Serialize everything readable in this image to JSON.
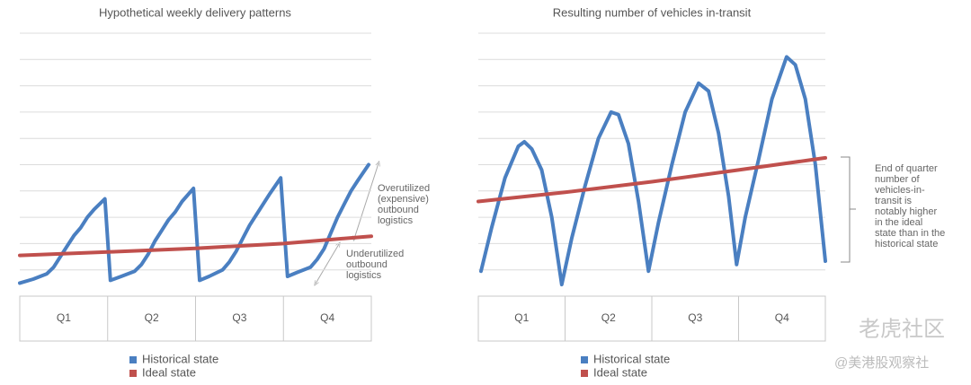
{
  "chart_data": [
    {
      "type": "line",
      "title": "Hypothetical weekly delivery patterns",
      "categories": [
        "Q1",
        "Q2",
        "Q3",
        "Q4"
      ],
      "xlim": [
        0,
        52
      ],
      "ylim": [
        0,
        10
      ],
      "yticks": [
        0,
        1,
        2,
        3,
        4,
        5,
        6,
        7,
        8,
        9,
        10
      ],
      "grid": true,
      "series": [
        {
          "name": "Historical state",
          "color": "#4a7fc1",
          "x": [
            0,
            2,
            4,
            5,
            6,
            7,
            8,
            9,
            10,
            11,
            12.6,
            13.4,
            15,
            17,
            18,
            19,
            20,
            21,
            22,
            23,
            24,
            25.7,
            26.6,
            28,
            30,
            31,
            32,
            33,
            34,
            35,
            36,
            37,
            38.6,
            39.6,
            41,
            43,
            44,
            45,
            46,
            47,
            48,
            49,
            50,
            51.6
          ],
          "values": [
            0.5,
            0.65,
            0.85,
            1.1,
            1.5,
            1.9,
            2.3,
            2.6,
            3.0,
            3.3,
            3.7,
            0.6,
            0.75,
            0.95,
            1.2,
            1.6,
            2.1,
            2.5,
            2.9,
            3.2,
            3.6,
            4.1,
            0.6,
            0.75,
            1.0,
            1.3,
            1.7,
            2.2,
            2.7,
            3.1,
            3.5,
            3.9,
            4.5,
            0.75,
            0.9,
            1.1,
            1.4,
            1.8,
            2.4,
            3.0,
            3.5,
            4.0,
            4.4,
            5.0
          ]
        },
        {
          "name": "Ideal state",
          "color": "#c0504d",
          "x": [
            0,
            13,
            26,
            39,
            52
          ],
          "values": [
            1.55,
            1.68,
            1.82,
            2.0,
            2.28
          ]
        }
      ],
      "annotations": [
        [
          "Overutilized",
          "(expensive)",
          "outbound",
          "logistics"
        ],
        [
          "Underutilized",
          "outbound",
          "logistics"
        ]
      ]
    },
    {
      "type": "line",
      "title": "Resulting number of vehicles in-transit",
      "categories": [
        "Q1",
        "Q2",
        "Q3",
        "Q4"
      ],
      "xlim": [
        0,
        52
      ],
      "ylim": [
        0,
        10
      ],
      "yticks": [
        0,
        1,
        2,
        3,
        4,
        5,
        6,
        7,
        8,
        9,
        10
      ],
      "grid": true,
      "series": [
        {
          "name": "Historical state",
          "color": "#4a7fc1",
          "x": [
            0.4,
            2,
            4,
            6,
            6.9,
            8,
            9.5,
            11,
            12.5,
            14,
            16,
            18,
            19.9,
            21,
            22.5,
            24,
            25.5,
            27,
            29,
            31,
            33,
            34.5,
            36,
            37.5,
            38.7,
            40,
            42,
            44,
            46.2,
            47.5,
            49,
            50.5,
            52
          ],
          "values": [
            0.95,
            2.6,
            4.5,
            5.7,
            5.87,
            5.6,
            4.8,
            3.0,
            0.44,
            2.2,
            4.2,
            6.0,
            7.0,
            6.9,
            5.8,
            3.6,
            0.95,
            2.8,
            5.0,
            7.0,
            8.1,
            7.8,
            6.2,
            3.8,
            1.2,
            3.0,
            5.2,
            7.5,
            9.1,
            8.8,
            7.5,
            5.0,
            1.33
          ]
        },
        {
          "name": "Ideal state",
          "color": "#c0504d",
          "x": [
            0,
            13,
            26,
            39,
            52
          ],
          "values": [
            3.6,
            3.95,
            4.35,
            4.8,
            5.26
          ]
        }
      ],
      "annotations": [
        [
          "End of quarter",
          "number of",
          "vehicles-in-",
          "transit is",
          "notably higher",
          "in the ideal",
          "state than in the",
          "historical state"
        ]
      ]
    }
  ],
  "watermark": [
    "老虎社区",
    "@美港股观察社"
  ]
}
